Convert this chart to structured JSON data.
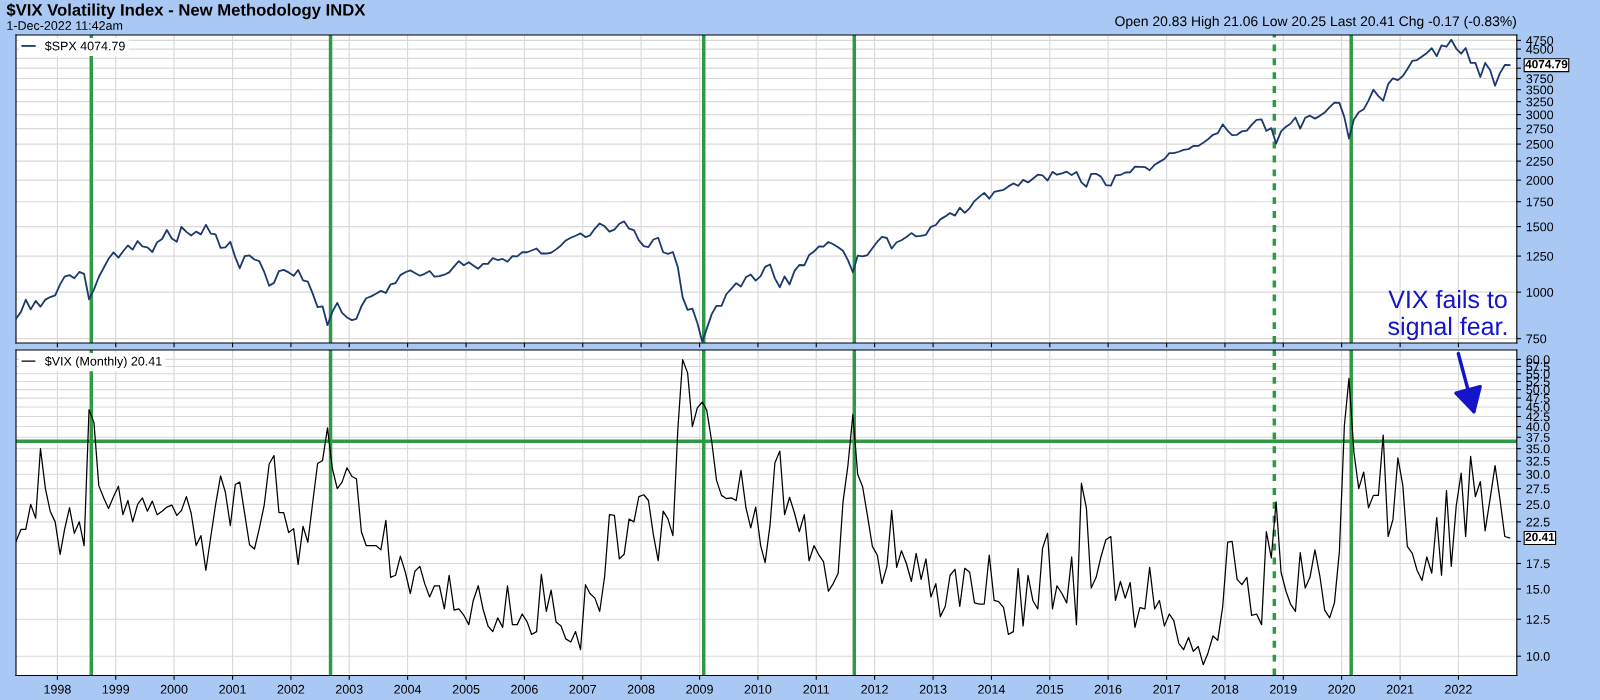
{
  "chart_data": [
    {
      "type": "line",
      "title": "$VIX Volatility Index - New Methodology INDX",
      "subtitle": "1-Dec-2022 11:42am",
      "annotations": [
        "Open 20.83 High 21.06 Low 20.25 Last 20.41 Chg -0.17 (-0.83%)",
        {
          "text": "4074.79",
          "x": "2022-12",
          "y": 4074.79
        }
      ],
      "x": [
        "1997-05",
        "1997-06",
        "1997-07",
        "1997-08",
        "1997-09",
        "1997-10",
        "1997-11",
        "1997-12",
        "1998-01",
        "1998-02",
        "1998-03",
        "1998-04",
        "1998-05",
        "1998-06",
        "1998-07",
        "1998-08",
        "1998-09",
        "1998-10",
        "1998-11",
        "1998-12",
        "1999-01",
        "1999-02",
        "1999-03",
        "1999-04",
        "1999-05",
        "1999-06",
        "1999-07",
        "1999-08",
        "1999-09",
        "1999-10",
        "1999-11",
        "1999-12",
        "2000-01",
        "2000-02",
        "2000-03",
        "2000-04",
        "2000-05",
        "2000-06",
        "2000-07",
        "2000-08",
        "2000-09",
        "2000-10",
        "2000-11",
        "2000-12",
        "2001-01",
        "2001-02",
        "2001-03",
        "2001-04",
        "2001-05",
        "2001-06",
        "2001-07",
        "2001-08",
        "2001-09",
        "2001-10",
        "2001-11",
        "2001-12",
        "2002-01",
        "2002-02",
        "2002-03",
        "2002-04",
        "2002-05",
        "2002-06",
        "2002-07",
        "2002-08",
        "2002-09",
        "2002-10",
        "2002-11",
        "2002-12",
        "2003-01",
        "2003-02",
        "2003-03",
        "2003-04",
        "2003-05",
        "2003-06",
        "2003-07",
        "2003-08",
        "2003-09",
        "2003-10",
        "2003-11",
        "2003-12",
        "2004-01",
        "2004-02",
        "2004-03",
        "2004-04",
        "2004-05",
        "2004-06",
        "2004-07",
        "2004-08",
        "2004-09",
        "2004-10",
        "2004-11",
        "2004-12",
        "2005-01",
        "2005-02",
        "2005-03",
        "2005-04",
        "2005-05",
        "2005-06",
        "2005-07",
        "2005-08",
        "2005-09",
        "2005-10",
        "2005-11",
        "2005-12",
        "2006-01",
        "2006-02",
        "2006-03",
        "2006-04",
        "2006-05",
        "2006-06",
        "2006-07",
        "2006-08",
        "2006-09",
        "2006-10",
        "2006-11",
        "2006-12",
        "2007-01",
        "2007-02",
        "2007-03",
        "2007-04",
        "2007-05",
        "2007-06",
        "2007-07",
        "2007-08",
        "2007-09",
        "2007-10",
        "2007-11",
        "2007-12",
        "2008-01",
        "2008-02",
        "2008-03",
        "2008-04",
        "2008-05",
        "2008-06",
        "2008-07",
        "2008-08",
        "2008-09",
        "2008-10",
        "2008-11",
        "2008-12",
        "2009-01",
        "2009-02",
        "2009-03",
        "2009-04",
        "2009-05",
        "2009-06",
        "2009-07",
        "2009-08",
        "2009-09",
        "2009-10",
        "2009-11",
        "2009-12",
        "2010-01",
        "2010-02",
        "2010-03",
        "2010-04",
        "2010-05",
        "2010-06",
        "2010-07",
        "2010-08",
        "2010-09",
        "2010-10",
        "2010-11",
        "2010-12",
        "2011-01",
        "2011-02",
        "2011-03",
        "2011-04",
        "2011-05",
        "2011-06",
        "2011-07",
        "2011-08",
        "2011-09",
        "2011-10",
        "2011-11",
        "2011-12",
        "2012-01",
        "2012-02",
        "2012-03",
        "2012-04",
        "2012-05",
        "2012-06",
        "2012-07",
        "2012-08",
        "2012-09",
        "2012-10",
        "2012-11",
        "2012-12",
        "2013-01",
        "2013-02",
        "2013-03",
        "2013-04",
        "2013-05",
        "2013-06",
        "2013-07",
        "2013-08",
        "2013-09",
        "2013-10",
        "2013-11",
        "2013-12",
        "2014-01",
        "2014-02",
        "2014-03",
        "2014-04",
        "2014-05",
        "2014-06",
        "2014-07",
        "2014-08",
        "2014-09",
        "2014-10",
        "2014-11",
        "2014-12",
        "2015-01",
        "2015-02",
        "2015-03",
        "2015-04",
        "2015-05",
        "2015-06",
        "2015-07",
        "2015-08",
        "2015-09",
        "2015-10",
        "2015-11",
        "2015-12",
        "2016-01",
        "2016-02",
        "2016-03",
        "2016-04",
        "2016-05",
        "2016-06",
        "2016-07",
        "2016-08",
        "2016-09",
        "2016-10",
        "2016-11",
        "2016-12",
        "2017-01",
        "2017-02",
        "2017-03",
        "2017-04",
        "2017-05",
        "2017-06",
        "2017-07",
        "2017-08",
        "2017-09",
        "2017-10",
        "2017-11",
        "2017-12",
        "2018-01",
        "2018-02",
        "2018-03",
        "2018-04",
        "2018-05",
        "2018-06",
        "2018-07",
        "2018-08",
        "2018-09",
        "2018-10",
        "2018-11",
        "2018-12",
        "2019-01",
        "2019-02",
        "2019-03",
        "2019-04",
        "2019-05",
        "2019-06",
        "2019-07",
        "2019-08",
        "2019-09",
        "2019-10",
        "2019-11",
        "2019-12",
        "2020-01",
        "2020-02",
        "2020-03",
        "2020-04",
        "2020-05",
        "2020-06",
        "2020-07",
        "2020-08",
        "2020-09",
        "2020-10",
        "2020-11",
        "2020-12",
        "2021-01",
        "2021-02",
        "2021-03",
        "2021-04",
        "2021-05",
        "2021-06",
        "2021-07",
        "2021-08",
        "2021-09",
        "2021-10",
        "2021-11",
        "2021-12",
        "2022-01",
        "2022-02",
        "2022-03",
        "2022-04",
        "2022-05",
        "2022-06",
        "2022-07",
        "2022-08",
        "2022-09",
        "2022-10",
        "2022-11",
        "2022-12"
      ],
      "series": [
        {
          "name": "$SPX 4074.79",
          "color": "#1c3a6e",
          "values": [
            848,
            885,
            954,
            899,
            947,
            914,
            955,
            970,
            980,
            1049,
            1101,
            1111,
            1090,
            1133,
            1120,
            957,
            1017,
            1098,
            1163,
            1229,
            1279,
            1238,
            1286,
            1335,
            1301,
            1372,
            1328,
            1320,
            1282,
            1362,
            1389,
            1469,
            1394,
            1366,
            1498,
            1452,
            1420,
            1454,
            1430,
            1517,
            1436,
            1429,
            1315,
            1320,
            1366,
            1240,
            1160,
            1249,
            1255,
            1224,
            1211,
            1133,
            1040,
            1059,
            1139,
            1148,
            1130,
            1106,
            1147,
            1076,
            1067,
            989,
            911,
            916,
            815,
            885,
            936,
            880,
            855,
            841,
            848,
            916,
            963,
            974,
            990,
            1008,
            995,
            1050,
            1058,
            1111,
            1131,
            1144,
            1126,
            1107,
            1120,
            1140,
            1101,
            1104,
            1114,
            1130,
            1173,
            1211,
            1181,
            1203,
            1180,
            1156,
            1191,
            1191,
            1234,
            1220,
            1228,
            1207,
            1249,
            1248,
            1280,
            1280,
            1294,
            1310,
            1270,
            1270,
            1276,
            1303,
            1335,
            1377,
            1400,
            1418,
            1438,
            1406,
            1420,
            1482,
            1530,
            1503,
            1455,
            1473,
            1527,
            1549,
            1481,
            1468,
            1378,
            1330,
            1322,
            1385,
            1400,
            1280,
            1267,
            1282,
            1166,
            968,
            896,
            903,
            826,
            735,
            798,
            873,
            919,
            919,
            987,
            1021,
            1057,
            1036,
            1096,
            1115,
            1074,
            1104,
            1169,
            1187,
            1089,
            1031,
            1102,
            1049,
            1141,
            1183,
            1181,
            1258,
            1286,
            1327,
            1326,
            1364,
            1345,
            1321,
            1292,
            1219,
            1131,
            1253,
            1247,
            1258,
            1312,
            1366,
            1408,
            1398,
            1310,
            1362,
            1379,
            1407,
            1441,
            1412,
            1416,
            1426,
            1498,
            1515,
            1569,
            1598,
            1631,
            1606,
            1686,
            1633,
            1682,
            1757,
            1806,
            1848,
            1783,
            1859,
            1872,
            1884,
            1924,
            1960,
            1931,
            2003,
            1972,
            2018,
            2068,
            2059,
            1995,
            2105,
            2068,
            2086,
            2107,
            2063,
            2104,
            1972,
            1920,
            2079,
            2080,
            2044,
            1940,
            1932,
            2060,
            2065,
            2097,
            2099,
            2174,
            2171,
            2168,
            2126,
            2199,
            2239,
            2279,
            2364,
            2363,
            2384,
            2412,
            2423,
            2470,
            2472,
            2519,
            2575,
            2648,
            2674,
            2824,
            2714,
            2641,
            2648,
            2705,
            2718,
            2816,
            2902,
            2914,
            2712,
            2760,
            2507,
            2704,
            2784,
            2834,
            2946,
            2752,
            2942,
            2980,
            2926,
            2977,
            3038,
            3141,
            3231,
            3226,
            2954,
            2585,
            2912,
            3044,
            3100,
            3271,
            3500,
            3363,
            3270,
            3622,
            3756,
            3714,
            3811,
            3973,
            4181,
            4204,
            4298,
            4395,
            4523,
            4308,
            4605,
            4567,
            4766,
            4516,
            4374,
            4530,
            4132,
            4132,
            3785,
            4130,
            3955,
            3586,
            3872,
            4080,
            4074.79
          ]
        }
      ],
      "log": "y",
      "xlim": [
        "1997-05-01",
        "2023-01-15"
      ],
      "ylim": [
        730,
        4910
      ],
      "xticks": [
        {
          "value": "1998-01-15",
          "label": null
        },
        {
          "value": "1999-01-15",
          "label": null
        },
        {
          "value": "2000-01-15",
          "label": null
        },
        {
          "value": "2001-01-15",
          "label": null
        },
        {
          "value": "2002-01-15",
          "label": null
        },
        {
          "value": "2003-01-15",
          "label": null
        },
        {
          "value": "2004-01-15",
          "label": null
        },
        {
          "value": "2005-01-15",
          "label": null
        },
        {
          "value": "2006-01-15",
          "label": null
        },
        {
          "value": "2007-01-15",
          "label": null
        },
        {
          "value": "2008-01-15",
          "label": null
        },
        {
          "value": "2009-01-15",
          "label": null
        },
        {
          "value": "2010-01-15",
          "label": null
        },
        {
          "value": "2011-01-15",
          "label": null
        },
        {
          "value": "2012-01-15",
          "label": null
        },
        {
          "value": "2013-01-15",
          "label": null
        },
        {
          "value": "2014-01-15",
          "label": null
        },
        {
          "value": "2015-01-15",
          "label": null
        },
        {
          "value": "2016-01-15",
          "label": null
        },
        {
          "value": "2017-01-15",
          "label": null
        },
        {
          "value": "2018-01-15",
          "label": null
        },
        {
          "value": "2019-01-15",
          "label": null
        },
        {
          "value": "2020-01-15",
          "label": null
        },
        {
          "value": "2021-01-15",
          "label": null
        },
        {
          "value": "2022-01-15",
          "label": null
        }
      ],
      "yticks": [
        750,
        1000,
        1250,
        1500,
        1750,
        2000,
        2250,
        2500,
        2750,
        3000,
        3250,
        3500,
        3750,
        {
          "value": 4000,
          "label": null
        },
        {
          "value": 4250,
          "label": null
        },
        4500,
        4750
      ],
      "tick_labels": "y",
      "grid": true,
      "legend": "top left",
      "line_style": "solid",
      "marker": "none",
      "ref_lines": [
        {
          "axis": "x",
          "value": "1998-08-15",
          "color": "#2e9a48",
          "line_style": "solid"
        },
        {
          "axis": "x",
          "value": "2002-09-20",
          "color": "#2e9a48",
          "line_style": "solid"
        },
        {
          "axis": "x",
          "value": "2009-02-10",
          "color": "#2e9a48",
          "line_style": "solid"
        },
        {
          "axis": "x",
          "value": "2011-09-10",
          "color": "#2e9a48",
          "line_style": "solid"
        },
        {
          "axis": "x",
          "value": "2018-11-20",
          "color": "#2e9a48",
          "line_style": "dotted"
        },
        {
          "axis": "x",
          "value": "2020-03-15",
          "color": "#2e9a48",
          "line_style": "solid"
        }
      ]
    },
    {
      "type": "line",
      "annotations": [
        {
          "text": "20.41",
          "x": "2022-12",
          "y": 20.41
        },
        "VIX fails to\nsignal fear."
      ],
      "x": [
        "1997-05",
        "1997-06",
        "1997-07",
        "1997-08",
        "1997-09",
        "1997-10",
        "1997-11",
        "1997-12",
        "1998-01",
        "1998-02",
        "1998-03",
        "1998-04",
        "1998-05",
        "1998-06",
        "1998-07",
        "1998-08",
        "1998-09",
        "1998-10",
        "1998-11",
        "1998-12",
        "1999-01",
        "1999-02",
        "1999-03",
        "1999-04",
        "1999-05",
        "1999-06",
        "1999-07",
        "1999-08",
        "1999-09",
        "1999-10",
        "1999-11",
        "1999-12",
        "2000-01",
        "2000-02",
        "2000-03",
        "2000-04",
        "2000-05",
        "2000-06",
        "2000-07",
        "2000-08",
        "2000-09",
        "2000-10",
        "2000-11",
        "2000-12",
        "2001-01",
        "2001-02",
        "2001-03",
        "2001-04",
        "2001-05",
        "2001-06",
        "2001-07",
        "2001-08",
        "2001-09",
        "2001-10",
        "2001-11",
        "2001-12",
        "2002-01",
        "2002-02",
        "2002-03",
        "2002-04",
        "2002-05",
        "2002-06",
        "2002-07",
        "2002-08",
        "2002-09",
        "2002-10",
        "2002-11",
        "2002-12",
        "2003-01",
        "2003-02",
        "2003-03",
        "2003-04",
        "2003-05",
        "2003-06",
        "2003-07",
        "2003-08",
        "2003-09",
        "2003-10",
        "2003-11",
        "2003-12",
        "2004-01",
        "2004-02",
        "2004-03",
        "2004-04",
        "2004-05",
        "2004-06",
        "2004-07",
        "2004-08",
        "2004-09",
        "2004-10",
        "2004-11",
        "2004-12",
        "2005-01",
        "2005-02",
        "2005-03",
        "2005-04",
        "2005-05",
        "2005-06",
        "2005-07",
        "2005-08",
        "2005-09",
        "2005-10",
        "2005-11",
        "2005-12",
        "2006-01",
        "2006-02",
        "2006-03",
        "2006-04",
        "2006-05",
        "2006-06",
        "2006-07",
        "2006-08",
        "2006-09",
        "2006-10",
        "2006-11",
        "2006-12",
        "2007-01",
        "2007-02",
        "2007-03",
        "2007-04",
        "2007-05",
        "2007-06",
        "2007-07",
        "2007-08",
        "2007-09",
        "2007-10",
        "2007-11",
        "2007-12",
        "2008-01",
        "2008-02",
        "2008-03",
        "2008-04",
        "2008-05",
        "2008-06",
        "2008-07",
        "2008-08",
        "2008-09",
        "2008-10",
        "2008-11",
        "2008-12",
        "2009-01",
        "2009-02",
        "2009-03",
        "2009-04",
        "2009-05",
        "2009-06",
        "2009-07",
        "2009-08",
        "2009-09",
        "2009-10",
        "2009-11",
        "2009-12",
        "2010-01",
        "2010-02",
        "2010-03",
        "2010-04",
        "2010-05",
        "2010-06",
        "2010-07",
        "2010-08",
        "2010-09",
        "2010-10",
        "2010-11",
        "2010-12",
        "2011-01",
        "2011-02",
        "2011-03",
        "2011-04",
        "2011-05",
        "2011-06",
        "2011-07",
        "2011-08",
        "2011-09",
        "2011-10",
        "2011-11",
        "2011-12",
        "2012-01",
        "2012-02",
        "2012-03",
        "2012-04",
        "2012-05",
        "2012-06",
        "2012-07",
        "2012-08",
        "2012-09",
        "2012-10",
        "2012-11",
        "2012-12",
        "2013-01",
        "2013-02",
        "2013-03",
        "2013-04",
        "2013-05",
        "2013-06",
        "2013-07",
        "2013-08",
        "2013-09",
        "2013-10",
        "2013-11",
        "2013-12",
        "2014-01",
        "2014-02",
        "2014-03",
        "2014-04",
        "2014-05",
        "2014-06",
        "2014-07",
        "2014-08",
        "2014-09",
        "2014-10",
        "2014-11",
        "2014-12",
        "2015-01",
        "2015-02",
        "2015-03",
        "2015-04",
        "2015-05",
        "2015-06",
        "2015-07",
        "2015-08",
        "2015-09",
        "2015-10",
        "2015-11",
        "2015-12",
        "2016-01",
        "2016-02",
        "2016-03",
        "2016-04",
        "2016-05",
        "2016-06",
        "2016-07",
        "2016-08",
        "2016-09",
        "2016-10",
        "2016-11",
        "2016-12",
        "2017-01",
        "2017-02",
        "2017-03",
        "2017-04",
        "2017-05",
        "2017-06",
        "2017-07",
        "2017-08",
        "2017-09",
        "2017-10",
        "2017-11",
        "2017-12",
        "2018-01",
        "2018-02",
        "2018-03",
        "2018-04",
        "2018-05",
        "2018-06",
        "2018-07",
        "2018-08",
        "2018-09",
        "2018-10",
        "2018-11",
        "2018-12",
        "2019-01",
        "2019-02",
        "2019-03",
        "2019-04",
        "2019-05",
        "2019-06",
        "2019-07",
        "2019-08",
        "2019-09",
        "2019-10",
        "2019-11",
        "2019-12",
        "2020-01",
        "2020-02",
        "2020-03",
        "2020-04",
        "2020-05",
        "2020-06",
        "2020-07",
        "2020-08",
        "2020-09",
        "2020-10",
        "2020-11",
        "2020-12",
        "2021-01",
        "2021-02",
        "2021-03",
        "2021-04",
        "2021-05",
        "2021-06",
        "2021-07",
        "2021-08",
        "2021-09",
        "2021-10",
        "2021-11",
        "2021-12",
        "2022-01",
        "2022-02",
        "2022-03",
        "2022-04",
        "2022-05",
        "2022-06",
        "2022-07",
        "2022-08",
        "2022-09",
        "2022-10",
        "2022-11",
        "2022-12"
      ],
      "series": [
        {
          "name": "$VIX (Monthly) 20.41",
          "color": "#000000",
          "values": [
            20.0,
            21.5,
            21.5,
            25,
            23,
            35,
            27.5,
            24.0,
            22.5,
            18.5,
            21.5,
            24.5,
            21.0,
            22.5,
            19.5,
            44.3,
            40.9,
            28.0,
            26.0,
            24.4,
            26.2,
            27.9,
            23.5,
            25.6,
            22.5,
            25.0,
            26.0,
            24.0,
            25.5,
            23.5,
            24.0,
            24.6,
            24.9,
            23.4,
            24.1,
            26.2,
            23.7,
            19.5,
            20.7,
            16.8,
            20.6,
            25.0,
            29.7,
            26.9,
            22.0,
            28.2,
            28.6,
            23.6,
            19.6,
            19.1,
            21.6,
            24.9,
            31.9,
            33.6,
            23.8,
            23.8,
            21.1,
            21.6,
            17.4,
            21.9,
            19.9,
            25.4,
            32.0,
            32.6,
            39.7,
            31.1,
            27.5,
            28.6,
            31.2,
            29.6,
            29.2,
            21.2,
            19.5,
            19.5,
            19.5,
            19.0,
            22.7,
            16.1,
            16.3,
            18.3,
            16.6,
            14.6,
            16.7,
            17.2,
            15.5,
            14.3,
            15.3,
            15.3,
            13.3,
            16.3,
            13.2,
            13.3,
            12.8,
            12.1,
            14.0,
            15.3,
            13.3,
            12.0,
            11.6,
            12.6,
            11.9,
            15.3,
            12.1,
            12.1,
            12.9,
            12.3,
            11.4,
            11.6,
            16.4,
            13.1,
            14.9,
            12.3,
            12.0,
            11.1,
            10.9,
            11.6,
            10.4,
            15.4,
            14.6,
            14.2,
            13.1,
            16.2,
            23.5,
            23.4,
            18.0,
            18.5,
            22.9,
            22.5,
            26.2,
            26.5,
            25.6,
            20.8,
            17.8,
            24.0,
            22.9,
            20.7,
            39.4,
            59.9,
            55.3,
            40.0,
            44.8,
            46.4,
            44.1,
            36.5,
            28.9,
            26.4,
            25.9,
            26.0,
            25.6,
            30.7,
            24.5,
            21.7,
            24.6,
            19.5,
            17.6,
            22.1,
            32.1,
            34.5,
            23.5,
            26.1,
            23.7,
            21.2,
            23.5,
            17.8,
            19.5,
            18.4,
            17.7,
            14.8,
            15.5,
            16.5,
            25.3,
            31.6,
            43.0,
            30.0,
            27.8,
            23.4,
            19.4,
            18.4,
            15.5,
            17.2,
            24.1,
            17.1,
            18.9,
            17.5,
            15.7,
            18.6,
            15.9,
            18.0,
            14.3,
            15.5,
            12.7,
            13.5,
            16.3,
            16.9,
            13.5,
            17.0,
            16.6,
            13.8,
            13.7,
            13.7,
            18.4,
            14.0,
            13.9,
            13.4,
            11.4,
            11.6,
            17.0,
            12.0,
            16.3,
            14.0,
            13.3,
            19.2,
            21.0,
            13.3,
            15.3,
            14.6,
            13.8,
            18.2,
            12.1,
            28.4,
            24.5,
            15.1,
            16.1,
            18.2,
            20.2,
            20.6,
            14.0,
            15.7,
            14.2,
            15.6,
            11.9,
            13.4,
            13.3,
            17.1,
            13.3,
            14.0,
            12.0,
            12.9,
            12.4,
            10.8,
            10.4,
            11.2,
            10.3,
            10.6,
            9.5,
            10.2,
            11.3,
            11.0,
            13.5,
            19.9,
            20.0,
            15.9,
            15.4,
            16.1,
            12.8,
            12.9,
            12.1,
            21.2,
            18.1,
            25.4,
            16.6,
            14.8,
            13.7,
            13.1,
            18.7,
            15.1,
            16.1,
            19.0,
            16.2,
            13.2,
            12.6,
            13.8,
            18.8,
            40.1,
            53.5,
            34.2,
            27.5,
            30.4,
            24.5,
            26.4,
            26.4,
            38.0,
            20.6,
            22.8,
            33.1,
            28.0,
            19.4,
            18.6,
            16.8,
            15.8,
            18.2,
            16.5,
            23.1,
            16.3,
            27.2,
            17.2,
            24.8,
            30.2,
            20.6,
            33.4,
            26.2,
            28.7,
            21.3,
            25.9,
            31.6,
            25.9,
            20.6,
            20.41
          ]
        }
      ],
      "log": "y",
      "xlim": [
        "1997-05-01",
        "2023-01-15"
      ],
      "ylim": [
        8.9,
        63.5
      ],
      "xticks": [
        {
          "value": "1998-01-15",
          "label": "1998"
        },
        {
          "value": "1999-01-15",
          "label": "1999"
        },
        {
          "value": "2000-01-15",
          "label": "2000"
        },
        {
          "value": "2001-01-15",
          "label": "2001"
        },
        {
          "value": "2002-01-15",
          "label": "2002"
        },
        {
          "value": "2003-01-15",
          "label": "2003"
        },
        {
          "value": "2004-01-15",
          "label": "2004"
        },
        {
          "value": "2005-01-15",
          "label": "2005"
        },
        {
          "value": "2006-01-15",
          "label": "2006"
        },
        {
          "value": "2007-01-15",
          "label": "2007"
        },
        {
          "value": "2008-01-15",
          "label": "2008"
        },
        {
          "value": "2009-01-15",
          "label": "2009"
        },
        {
          "value": "2010-01-15",
          "label": "2010"
        },
        {
          "value": "2011-01-15",
          "label": "2011"
        },
        {
          "value": "2012-01-15",
          "label": "2012"
        },
        {
          "value": "2013-01-15",
          "label": "2013"
        },
        {
          "value": "2014-01-15",
          "label": "2014"
        },
        {
          "value": "2015-01-15",
          "label": "2015"
        },
        {
          "value": "2016-01-15",
          "label": "2016"
        },
        {
          "value": "2017-01-15",
          "label": "2017"
        },
        {
          "value": "2018-01-15",
          "label": "2018"
        },
        {
          "value": "2019-01-15",
          "label": "2019"
        },
        {
          "value": "2020-01-15",
          "label": "2020"
        },
        {
          "value": "2021-01-15",
          "label": "2021"
        },
        {
          "value": "2022-01-15",
          "label": "2022"
        }
      ],
      "yticks": [
        {
          "value": 10,
          "label": "10.0"
        },
        12.5,
        {
          "value": 15,
          "label": "15.0"
        },
        17.5,
        {
          "value": 20,
          "label": null
        },
        22.5,
        {
          "value": 25,
          "label": "25.0"
        },
        27.5,
        {
          "value": 30,
          "label": "30.0"
        },
        32.5,
        {
          "value": 35,
          "label": "35.0"
        },
        37.5,
        {
          "value": 40,
          "label": "40.0"
        },
        42.5,
        {
          "value": 45,
          "label": "45.0"
        },
        47.5,
        {
          "value": 50,
          "label": "50.0"
        },
        52.5,
        {
          "value": 55,
          "label": "55.0"
        },
        57.5,
        {
          "value": 60,
          "label": "60.0"
        }
      ],
      "grid": true,
      "legend": "top left",
      "line_style": "solid",
      "marker": "none",
      "ref_lines": [
        {
          "axis": "y",
          "value": 36.6,
          "color": "#2e9a48",
          "line_style": "solid"
        },
        {
          "axis": "x",
          "value": "1998-08-15",
          "color": "#2e9a48",
          "line_style": "solid"
        },
        {
          "axis": "x",
          "value": "2002-09-20",
          "color": "#2e9a48",
          "line_style": "solid"
        },
        {
          "axis": "x",
          "value": "2009-02-10",
          "color": "#2e9a48",
          "line_style": "solid"
        },
        {
          "axis": "x",
          "value": "2011-09-10",
          "color": "#2e9a48",
          "line_style": "solid"
        },
        {
          "axis": "x",
          "value": "2018-11-20",
          "color": "#2e9a48",
          "line_style": "dotted"
        },
        {
          "axis": "x",
          "value": "2020-03-15",
          "color": "#2e9a48",
          "line_style": "solid"
        }
      ]
    }
  ]
}
